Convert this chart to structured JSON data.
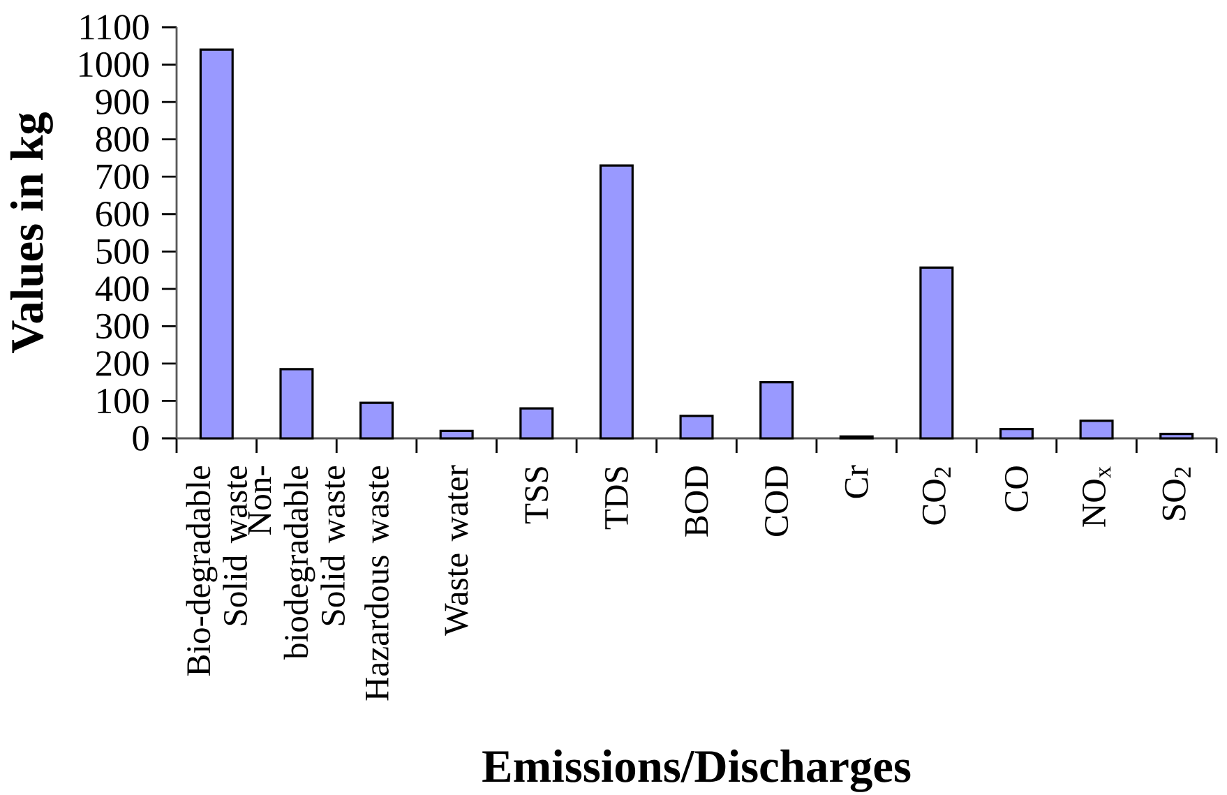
{
  "chart_data": {
    "type": "bar",
    "xlabel": "Emissions/Discharges",
    "ylabel": "Values in kg",
    "categories": [
      "Bio-degradable Solid waste",
      "Non-biodegradable Solid waste",
      "Hazardous waste",
      "Waste water",
      "TSS",
      "TDS",
      "BOD",
      "COD",
      "Cr",
      "CO$_{2}$",
      "CO",
      "NO$_{x}$",
      "SO$_{2}$"
    ],
    "values": [
      1040,
      185,
      95,
      20,
      80,
      730,
      60,
      150,
      5,
      457,
      25,
      47,
      12
    ],
    "color": "#9999ff",
    "ylim": [
      0,
      1100
    ],
    "yticks": [
      0,
      100,
      200,
      300,
      400,
      500,
      600,
      700,
      800,
      900,
      1000,
      1100
    ]
  }
}
